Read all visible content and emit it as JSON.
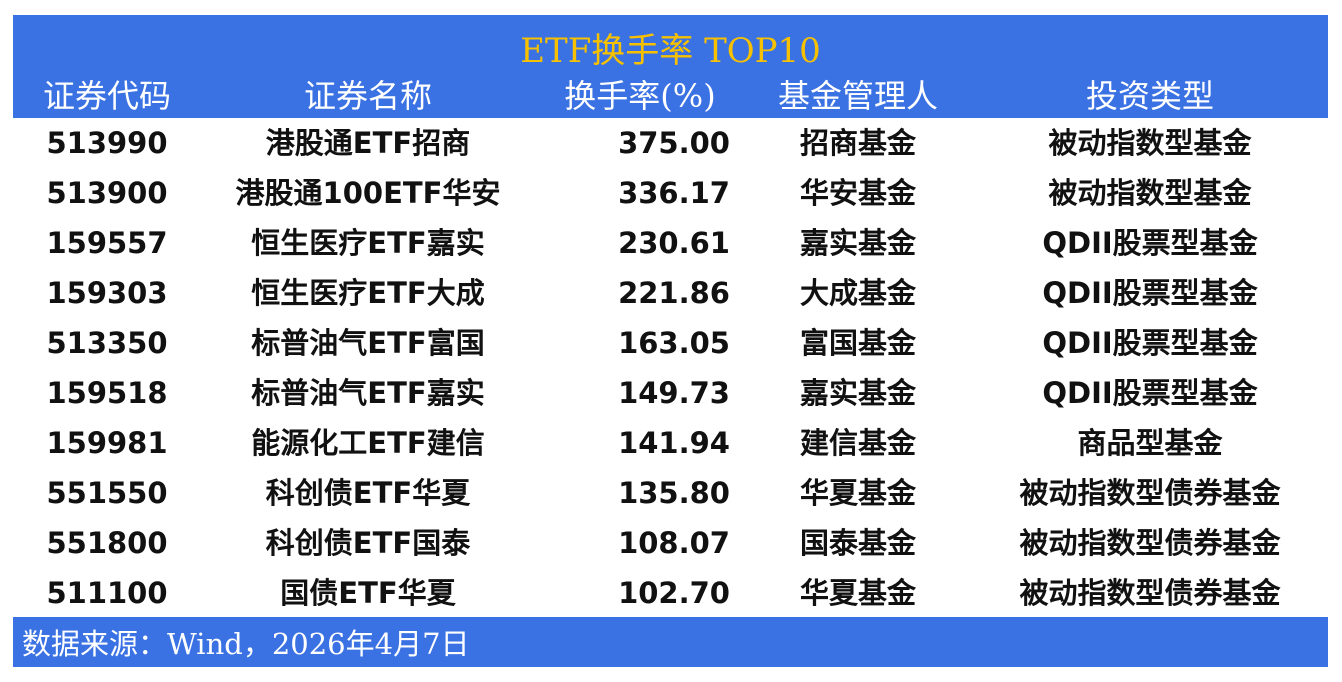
{
  "title": "ETF换手率 TOP10",
  "headers": [
    "证券代码",
    "证券名称",
    "换手率(%)",
    "基金管理人",
    "投资类型"
  ],
  "rows": [
    [
      "513990",
      "港股通ETF招商",
      "375.00",
      "招商基金",
      "被动指数型基金"
    ],
    [
      "513900",
      "港股通100ETF华安",
      "336.17",
      "华安基金",
      "被动指数型基金"
    ],
    [
      "159557",
      "恒生医疗ETF嘉实",
      "230.61",
      "嘉实基金",
      "QDII股票型基金"
    ],
    [
      "159303",
      "恒生医疗ETF大成",
      "221.86",
      "大成基金",
      "QDII股票型基金"
    ],
    [
      "513350",
      "标普油气ETF富国",
      "163.05",
      "富国基金",
      "QDII股票型基金"
    ],
    [
      "159518",
      "标普油气ETF嘉实",
      "149.73",
      "嘉实基金",
      "QDII股票型基金"
    ],
    [
      "159981",
      "能源化工ETF建信",
      "141.94",
      "建信基金",
      "商品型基金"
    ],
    [
      "551550",
      "科创债ETF华夏",
      "135.80",
      "华夏基金",
      "被动指数型债券基金"
    ],
    [
      "551800",
      "科创债ETF国泰",
      "108.07",
      "国泰基金",
      "被动指数型债券基金"
    ],
    [
      "511100",
      "国债ETF华夏",
      "102.70",
      "华夏基金",
      "被动指数型债券基金"
    ]
  ],
  "footer": "数据来源：Wind，2026年4月7日",
  "colors": {
    "header_bg": "#3a71e3",
    "title": "#f7c100"
  }
}
